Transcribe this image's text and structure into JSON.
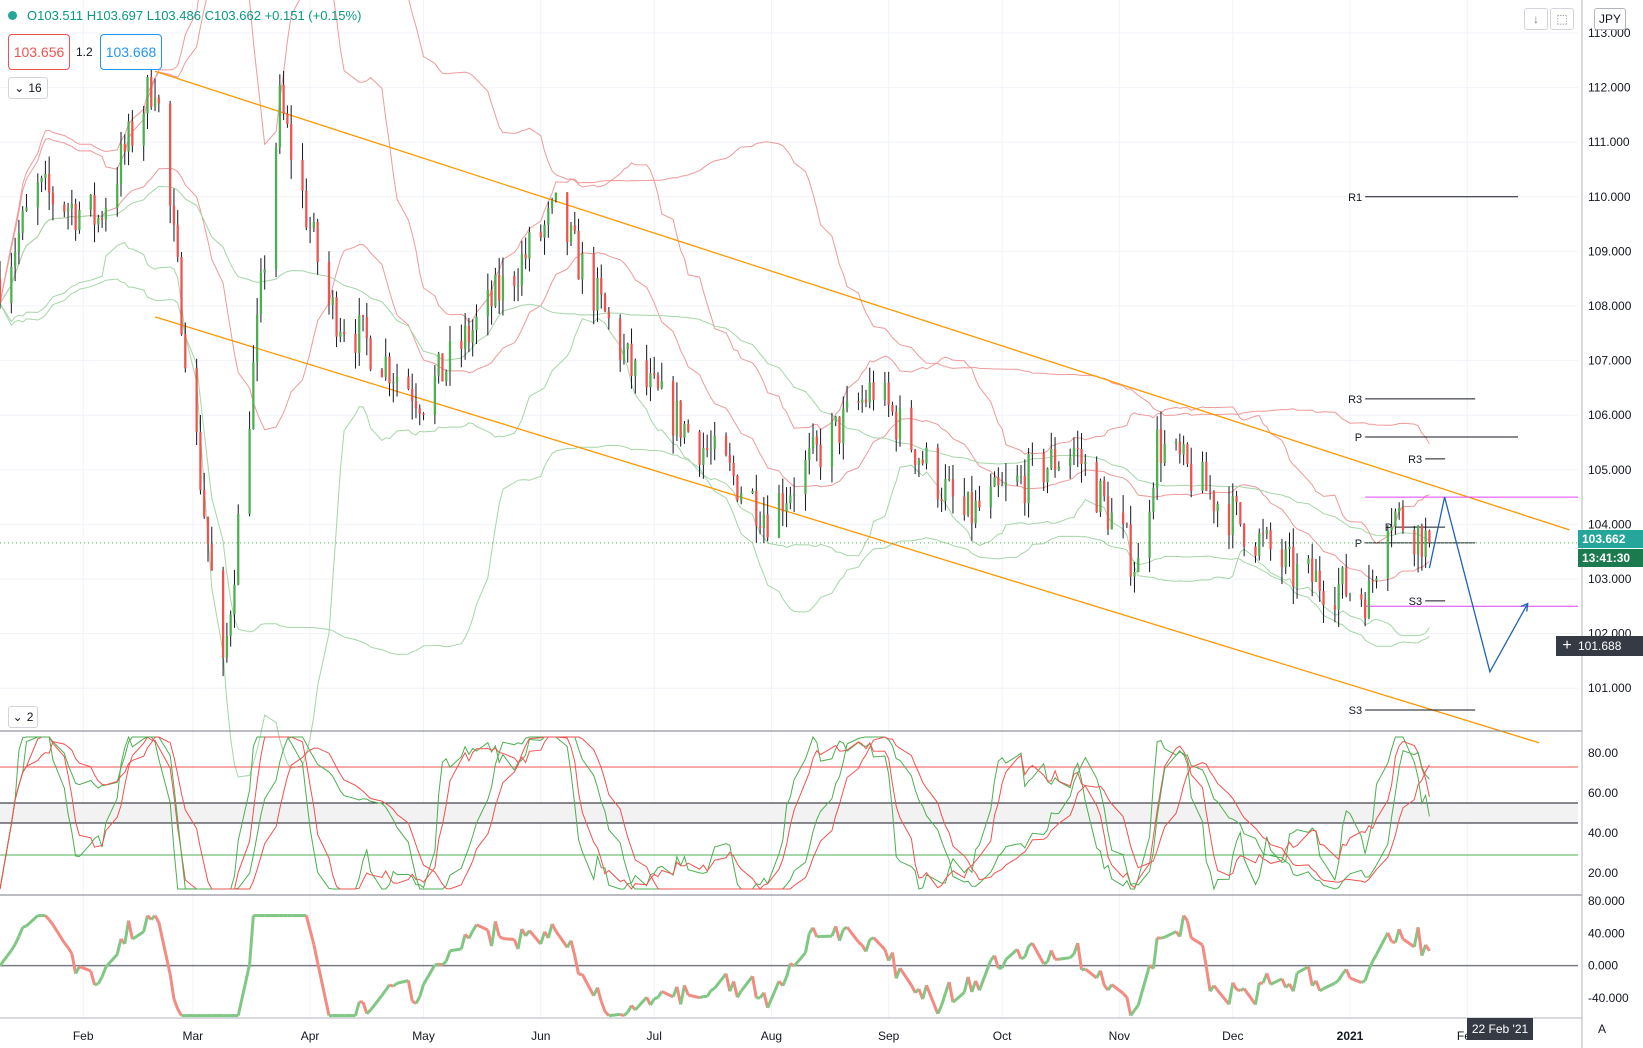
{
  "header": {
    "symbol_status_color": "#26a69a",
    "ohlc_text": "O103.511  H103.697  L103.486  C103.662  +0.151  (+0.15%)",
    "sell_price": "103.656",
    "spread": "1.2",
    "buy_price": "103.668",
    "main_pane_toggle": "16",
    "osc_pane_toggle": "2",
    "currency": "JPY",
    "scroll_down_icon": "↓",
    "maximize_icon": "⬚",
    "auto_scale_label": "A"
  },
  "price_axis": {
    "labels": [
      "113.000",
      "112.000",
      "111.000",
      "110.000",
      "109.000",
      "108.000",
      "107.000",
      "106.000",
      "105.000",
      "104.000",
      "103.000",
      "102.000",
      "101.000"
    ],
    "current_price": "103.662",
    "countdown": "13:41:30",
    "crosshair_price": "101.688"
  },
  "time_axis": {
    "labels": [
      "Feb",
      "Mar",
      "Apr",
      "May",
      "Jun",
      "Jul",
      "Aug",
      "Sep",
      "Oct",
      "Nov",
      "Dec",
      "2021",
      "Feb"
    ],
    "crosshair_date": "22 Feb '21"
  },
  "osc1_axis": [
    "80.00",
    "60.00",
    "40.00",
    "20.00"
  ],
  "osc2_axis": [
    "80.000",
    "40.000",
    "0.000",
    "-40.000"
  ],
  "pivot_labels": {
    "r1": "R1",
    "r3_big": "R3",
    "p_big": "P",
    "s3_big": "S3",
    "r3_small": "R3",
    "p_small": "P",
    "s3_small": "S3",
    "p_tiny": "P"
  },
  "colors": {
    "up": "#4caf50",
    "down": "#ef5350",
    "channel": "#ff9800",
    "bands_red": "#ef9a9a",
    "bands_green": "#a5d6a7",
    "pink_levels": "#e040fb",
    "projection": "#1e63b5",
    "price_tag": "#26a69a",
    "countdown_tag": "#1b7a4e"
  },
  "chart_data": [
    {
      "type": "candlestick",
      "symbol_currency": "JPY",
      "x_range": [
        "2020-01-10",
        "2021-02-25"
      ],
      "ylim": [
        100.0,
        113.2
      ],
      "anchors": [
        {
          "date": "2020-01-10",
          "close": 108.5
        },
        {
          "date": "2020-01-20",
          "close": 110.1
        },
        {
          "date": "2020-02-05",
          "close": 109.6
        },
        {
          "date": "2020-02-20",
          "close": 112.2
        },
        {
          "date": "2020-03-09",
          "close": 101.2
        },
        {
          "date": "2020-03-24",
          "close": 111.7
        },
        {
          "date": "2020-04-06",
          "close": 108.0
        },
        {
          "date": "2020-05-01",
          "close": 106.3
        },
        {
          "date": "2020-06-05",
          "close": 109.7
        },
        {
          "date": "2020-06-25",
          "close": 106.8
        },
        {
          "date": "2020-07-31",
          "close": 104.2
        },
        {
          "date": "2020-08-28",
          "close": 106.5
        },
        {
          "date": "2020-09-21",
          "close": 104.1
        },
        {
          "date": "2020-10-20",
          "close": 105.4
        },
        {
          "date": "2020-11-06",
          "close": 103.2
        },
        {
          "date": "2020-11-11",
          "close": 105.5
        },
        {
          "date": "2020-12-17",
          "close": 103.1
        },
        {
          "date": "2021-01-06",
          "close": 102.7
        },
        {
          "date": "2021-01-11",
          "close": 104.3
        },
        {
          "date": "2021-01-22",
          "close": 103.662
        }
      ],
      "channel_upper": [
        {
          "date": "2020-02-20",
          "price": 112.3
        },
        {
          "date": "2021-02-28",
          "price": 103.9
        }
      ],
      "channel_lower": [
        {
          "date": "2020-02-20",
          "price": 107.8
        },
        {
          "date": "2021-02-20",
          "price": 100.0
        }
      ],
      "pivot_levels": {
        "R1": 110.0,
        "R3_weekly": 106.3,
        "P": 105.6,
        "R3_daily": 105.2,
        "P_daily": 103.95,
        "P_close": 103.662,
        "S3_daily": 102.6,
        "S3_weekly": 100.6
      },
      "horizontal_levels": [
        104.5,
        102.5
      ],
      "projection_path": [
        {
          "date": "2021-01-22",
          "price": 103.2
        },
        {
          "date": "2021-01-26",
          "price": 104.5
        },
        {
          "date": "2021-02-07",
          "price": 101.3
        },
        {
          "date": "2021-02-17",
          "price": 102.55
        }
      ]
    },
    {
      "type": "line",
      "name": "Stochastic oscillator pane",
      "ylim": [
        10,
        90
      ],
      "levels": [
        73,
        55,
        45,
        29
      ]
    },
    {
      "type": "line",
      "name": "Momentum oscillator pane",
      "ylim": [
        -65,
        85
      ],
      "zero_line": 0
    }
  ]
}
